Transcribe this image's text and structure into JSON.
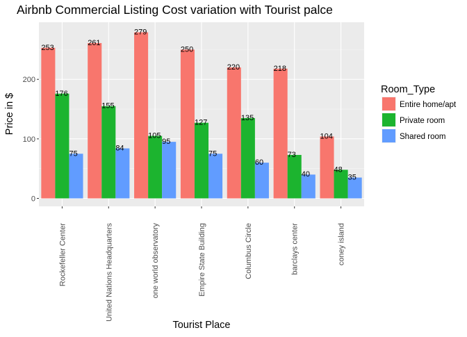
{
  "chart_data": {
    "type": "bar",
    "title": "Airbnb Commercial Listing Cost variation with Tourist palce",
    "xlabel": "Tourist Place",
    "ylabel": "Price in $",
    "categories": [
      "Rockefeller Center",
      "United Nations Headquarters",
      "one world observatory",
      "Empire State Building",
      "Columbus Circle",
      "barclays center",
      "coney island"
    ],
    "series": [
      {
        "name": "Entire home/apt",
        "color": "#F8766D",
        "values": [
          253,
          261,
          279,
          250,
          220,
          218,
          104
        ]
      },
      {
        "name": "Private room",
        "color": "#1CB42F",
        "values": [
          176,
          155,
          105,
          127,
          135,
          73,
          48
        ]
      },
      {
        "name": "Shared room",
        "color": "#619CFF",
        "values": [
          75,
          84,
          95,
          75,
          60,
          40,
          35
        ]
      }
    ],
    "ylim": [
      0,
      295
    ],
    "yticks": [
      0,
      100,
      200
    ],
    "legend_title": "Room_Type",
    "legend_position": "right",
    "grid": true,
    "panel_background": "#EBEBEB"
  }
}
